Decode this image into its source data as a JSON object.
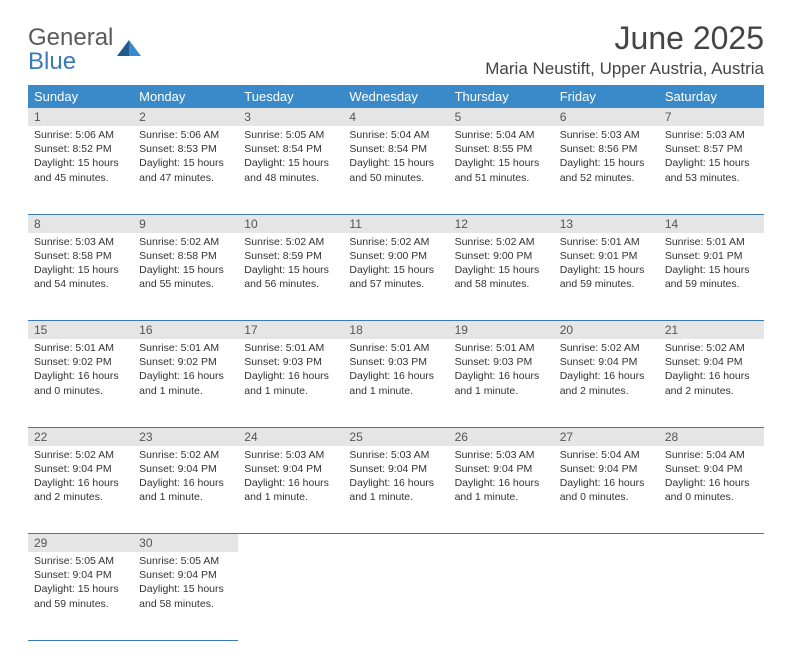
{
  "logo": {
    "word1": "General",
    "word2": "Blue"
  },
  "title": "June 2025",
  "location": "Maria Neustift, Upper Austria, Austria",
  "colors": {
    "header_bg": "#3a8ac9",
    "header_text": "#ffffff",
    "daynum_bg": "#e5e5e5",
    "rule": "#3a7ab8",
    "logo_gray": "#5a5a5a",
    "logo_blue": "#3a7ab8",
    "body_text": "#333333"
  },
  "day_headers": [
    "Sunday",
    "Monday",
    "Tuesday",
    "Wednesday",
    "Thursday",
    "Friday",
    "Saturday"
  ],
  "weeks": [
    [
      {
        "n": "1",
        "sr": "5:06 AM",
        "ss": "8:52 PM",
        "dl": "15 hours and 45 minutes."
      },
      {
        "n": "2",
        "sr": "5:06 AM",
        "ss": "8:53 PM",
        "dl": "15 hours and 47 minutes."
      },
      {
        "n": "3",
        "sr": "5:05 AM",
        "ss": "8:54 PM",
        "dl": "15 hours and 48 minutes."
      },
      {
        "n": "4",
        "sr": "5:04 AM",
        "ss": "8:54 PM",
        "dl": "15 hours and 50 minutes."
      },
      {
        "n": "5",
        "sr": "5:04 AM",
        "ss": "8:55 PM",
        "dl": "15 hours and 51 minutes."
      },
      {
        "n": "6",
        "sr": "5:03 AM",
        "ss": "8:56 PM",
        "dl": "15 hours and 52 minutes."
      },
      {
        "n": "7",
        "sr": "5:03 AM",
        "ss": "8:57 PM",
        "dl": "15 hours and 53 minutes."
      }
    ],
    [
      {
        "n": "8",
        "sr": "5:03 AM",
        "ss": "8:58 PM",
        "dl": "15 hours and 54 minutes."
      },
      {
        "n": "9",
        "sr": "5:02 AM",
        "ss": "8:58 PM",
        "dl": "15 hours and 55 minutes."
      },
      {
        "n": "10",
        "sr": "5:02 AM",
        "ss": "8:59 PM",
        "dl": "15 hours and 56 minutes."
      },
      {
        "n": "11",
        "sr": "5:02 AM",
        "ss": "9:00 PM",
        "dl": "15 hours and 57 minutes."
      },
      {
        "n": "12",
        "sr": "5:02 AM",
        "ss": "9:00 PM",
        "dl": "15 hours and 58 minutes."
      },
      {
        "n": "13",
        "sr": "5:01 AM",
        "ss": "9:01 PM",
        "dl": "15 hours and 59 minutes."
      },
      {
        "n": "14",
        "sr": "5:01 AM",
        "ss": "9:01 PM",
        "dl": "15 hours and 59 minutes."
      }
    ],
    [
      {
        "n": "15",
        "sr": "5:01 AM",
        "ss": "9:02 PM",
        "dl": "16 hours and 0 minutes."
      },
      {
        "n": "16",
        "sr": "5:01 AM",
        "ss": "9:02 PM",
        "dl": "16 hours and 1 minute."
      },
      {
        "n": "17",
        "sr": "5:01 AM",
        "ss": "9:03 PM",
        "dl": "16 hours and 1 minute."
      },
      {
        "n": "18",
        "sr": "5:01 AM",
        "ss": "9:03 PM",
        "dl": "16 hours and 1 minute."
      },
      {
        "n": "19",
        "sr": "5:01 AM",
        "ss": "9:03 PM",
        "dl": "16 hours and 1 minute."
      },
      {
        "n": "20",
        "sr": "5:02 AM",
        "ss": "9:04 PM",
        "dl": "16 hours and 2 minutes."
      },
      {
        "n": "21",
        "sr": "5:02 AM",
        "ss": "9:04 PM",
        "dl": "16 hours and 2 minutes."
      }
    ],
    [
      {
        "n": "22",
        "sr": "5:02 AM",
        "ss": "9:04 PM",
        "dl": "16 hours and 2 minutes."
      },
      {
        "n": "23",
        "sr": "5:02 AM",
        "ss": "9:04 PM",
        "dl": "16 hours and 1 minute."
      },
      {
        "n": "24",
        "sr": "5:03 AM",
        "ss": "9:04 PM",
        "dl": "16 hours and 1 minute."
      },
      {
        "n": "25",
        "sr": "5:03 AM",
        "ss": "9:04 PM",
        "dl": "16 hours and 1 minute."
      },
      {
        "n": "26",
        "sr": "5:03 AM",
        "ss": "9:04 PM",
        "dl": "16 hours and 1 minute."
      },
      {
        "n": "27",
        "sr": "5:04 AM",
        "ss": "9:04 PM",
        "dl": "16 hours and 0 minutes."
      },
      {
        "n": "28",
        "sr": "5:04 AM",
        "ss": "9:04 PM",
        "dl": "16 hours and 0 minutes."
      }
    ],
    [
      {
        "n": "29",
        "sr": "5:05 AM",
        "ss": "9:04 PM",
        "dl": "15 hours and 59 minutes."
      },
      {
        "n": "30",
        "sr": "5:05 AM",
        "ss": "9:04 PM",
        "dl": "15 hours and 58 minutes."
      },
      null,
      null,
      null,
      null,
      null
    ]
  ],
  "labels": {
    "sunrise": "Sunrise:",
    "sunset": "Sunset:",
    "daylight": "Daylight:"
  }
}
